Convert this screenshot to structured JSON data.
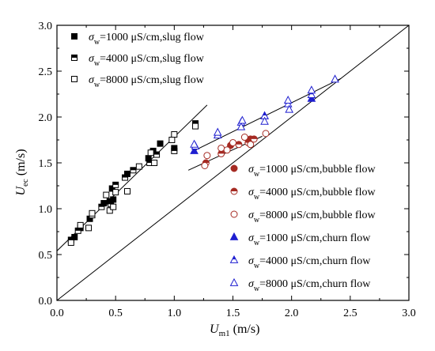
{
  "chart_data": {
    "type": "scatter",
    "x_axis": {
      "title_main": "U",
      "title_sub": "m1",
      "title_unit": " (m/s)",
      "lim": [
        0.0,
        3.0
      ],
      "ticks": [
        "0.0",
        "0.5",
        "1.0",
        "1.5",
        "2.0",
        "2.5",
        "3.0"
      ]
    },
    "y_axis": {
      "title_main": "U",
      "title_sub": "ec",
      "title_unit": " (m/s)",
      "lim": [
        0.0,
        3.0
      ],
      "ticks": [
        "0.0",
        "0.5",
        "1.0",
        "1.5",
        "2.0",
        "2.5",
        "3.0"
      ]
    },
    "grid": false,
    "diagonal_line": {
      "from": [
        0,
        0
      ],
      "to": [
        3.0,
        3.0
      ]
    },
    "fit_lines": [
      {
        "group": "slug",
        "from": [
          0.0,
          0.54
        ],
        "to": [
          1.28,
          2.13
        ]
      },
      {
        "group": "bubble",
        "from": [
          1.12,
          1.42
        ],
        "to": [
          1.75,
          1.79
        ]
      },
      {
        "group": "churn",
        "from": [
          1.15,
          1.62
        ],
        "to": [
          2.42,
          2.42
        ]
      }
    ],
    "series": [
      {
        "name": "σw=1000 μS/cm,slug flow",
        "label_sym": "σ",
        "label_sub": "w",
        "label_text": "=1000 μS/cm,slug flow",
        "marker": "square-filled",
        "color": "#000000",
        "points": [
          [
            0.15,
            0.69
          ],
          [
            0.2,
            0.79
          ],
          [
            0.28,
            0.89
          ],
          [
            0.4,
            1.06
          ],
          [
            0.45,
            1.08
          ],
          [
            0.47,
            1.22
          ],
          [
            0.48,
            1.1
          ],
          [
            0.6,
            1.38
          ],
          [
            0.78,
            1.55
          ],
          [
            0.82,
            1.63
          ],
          [
            0.88,
            1.71
          ],
          [
            1.0,
            1.66
          ],
          [
            1.18,
            1.93
          ]
        ]
      },
      {
        "name": "σw=4000 μS/cm,slug flow",
        "label_sym": "σ",
        "label_sub": "w",
        "label_text": "=4000 μS/cm,slug flow",
        "marker": "square-half",
        "color": "#000000",
        "points": [
          [
            0.12,
            0.66
          ],
          [
            0.18,
            0.76
          ],
          [
            0.3,
            0.93
          ],
          [
            0.38,
            1.02
          ],
          [
            0.46,
            1.05
          ],
          [
            0.5,
            1.26
          ],
          [
            0.58,
            1.34
          ],
          [
            0.65,
            1.42
          ],
          [
            0.79,
            1.5
          ],
          [
            0.85,
            1.59
          ],
          [
            1.0,
            1.63
          ]
        ]
      },
      {
        "name": "σw=8000 μS/cm,slug flow",
        "label_sym": "σ",
        "label_sub": "w",
        "label_text": "=8000 μS/cm,slug flow",
        "marker": "square-open",
        "color": "#000000",
        "points": [
          [
            0.12,
            0.63
          ],
          [
            0.2,
            0.82
          ],
          [
            0.27,
            0.79
          ],
          [
            0.3,
            0.95
          ],
          [
            0.42,
            1.15
          ],
          [
            0.45,
            0.98
          ],
          [
            0.48,
            1.02
          ],
          [
            0.5,
            1.18
          ],
          [
            0.6,
            1.19
          ],
          [
            0.7,
            1.46
          ],
          [
            0.8,
            1.61
          ],
          [
            0.83,
            1.5
          ],
          [
            0.98,
            1.75
          ],
          [
            1.0,
            1.81
          ],
          [
            1.18,
            1.9
          ]
        ]
      },
      {
        "name": "σw=1000 μS/cm,bubble flow",
        "label_sym": "σ",
        "label_sub": "w",
        "label_text": "=1000 μS/cm,bubble flow",
        "marker": "circle-filled",
        "color": "#a52a22",
        "points": [
          [
            1.48,
            1.69
          ],
          [
            1.65,
            1.76
          ]
        ]
      },
      {
        "name": "σw=4000 μS/cm,bubble flow",
        "label_sym": "σ",
        "label_sub": "w",
        "label_text": "=4000 μS/cm,bubble flow",
        "marker": "circle-half",
        "color": "#a52a22",
        "points": [
          [
            1.27,
            1.5
          ],
          [
            1.4,
            1.6
          ],
          [
            1.55,
            1.7
          ],
          [
            1.63,
            1.72
          ],
          [
            1.68,
            1.76
          ]
        ]
      },
      {
        "name": "σw=8000 μS/cm,bubble flow",
        "label_sym": "σ",
        "label_sub": "w",
        "label_text": "=8000 μS/cm,bubble flow",
        "marker": "circle-open",
        "color": "#a52a22",
        "points": [
          [
            1.26,
            1.47
          ],
          [
            1.28,
            1.58
          ],
          [
            1.4,
            1.66
          ],
          [
            1.45,
            1.64
          ],
          [
            1.5,
            1.72
          ],
          [
            1.6,
            1.78
          ],
          [
            1.65,
            1.7
          ],
          [
            1.78,
            1.82
          ]
        ]
      },
      {
        "name": "σw=1000 μS/cm,churn flow",
        "label_sym": "σ",
        "label_sub": "w",
        "label_text": "=1000 μS/cm,churn flow",
        "marker": "triangle-filled",
        "color": "#1f1fd0",
        "points": [
          [
            1.17,
            1.63
          ],
          [
            1.77,
            2.01
          ],
          [
            2.17,
            2.2
          ]
        ]
      },
      {
        "name": "σw=4000 μS/cm,churn flow",
        "label_sym": "σ",
        "label_sub": "w",
        "label_text": "=4000 μS/cm,churn flow",
        "marker": "triangle-half",
        "color": "#1f1fd0",
        "points": [
          [
            1.18,
            1.68
          ],
          [
            1.37,
            1.8
          ],
          [
            1.57,
            1.94
          ],
          [
            1.77,
            2.01
          ],
          [
            1.97,
            2.14
          ],
          [
            2.17,
            2.24
          ]
        ]
      },
      {
        "name": "σw=8000 μS/cm,churn flow",
        "label_sym": "σ",
        "label_sub": "w",
        "label_text": "=8000 μS/cm,churn flow",
        "marker": "triangle-open",
        "color": "#1f1fd0",
        "points": [
          [
            1.17,
            1.7
          ],
          [
            1.37,
            1.83
          ],
          [
            1.57,
            1.89
          ],
          [
            1.58,
            1.96
          ],
          [
            1.77,
            1.95
          ],
          [
            1.97,
            2.18
          ],
          [
            1.98,
            2.08
          ],
          [
            2.17,
            2.29
          ],
          [
            2.37,
            2.41
          ]
        ]
      }
    ],
    "legend": [
      {
        "placement": "top-left",
        "series": [
          0,
          1,
          2
        ]
      },
      {
        "placement": "bottom-right",
        "series": [
          3,
          4,
          5,
          6,
          7,
          8
        ]
      }
    ]
  }
}
